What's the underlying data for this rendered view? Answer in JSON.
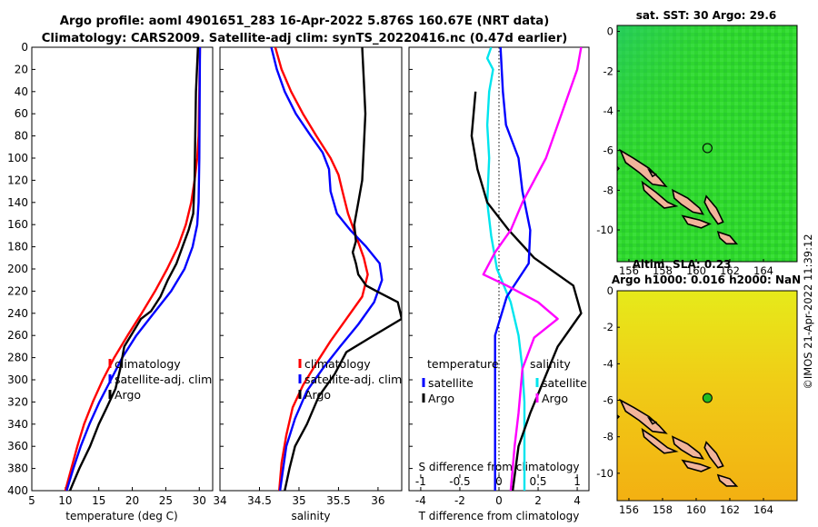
{
  "header": {
    "title_line1": "Argo profile: aoml 4901651_283 16-Apr-2022 5.876S 160.67E (NRT data)",
    "title_line2": "Climatology: CARS2009. Satellite-adj clim: synTS_20220416.nc (0.47d earlier)"
  },
  "colors": {
    "climatology": "#ff0000",
    "satellite": "#0000ff",
    "argo": "#000000",
    "temp_diff": "#00e5ee",
    "sal_diff": "#ff00ff"
  },
  "chart_data": [
    {
      "type": "line",
      "title": "",
      "xlabel": "temperature (deg C)",
      "ylabel": "",
      "xlim": [
        5,
        32
      ],
      "ylim": [
        400,
        0
      ],
      "xticks": [
        "5",
        "10",
        "15",
        "20",
        "25",
        "30"
      ],
      "yticks": [
        "0",
        "20",
        "40",
        "60",
        "80",
        "100",
        "120",
        "140",
        "160",
        "180",
        "200",
        "220",
        "240",
        "260",
        "280",
        "300",
        "320",
        "340",
        "360",
        "380",
        "400"
      ],
      "legend": [
        "climatology",
        "satellite-adj. clim",
        "Argo"
      ],
      "series": [
        {
          "name": "climatology",
          "points": [
            [
              30.1,
              0
            ],
            [
              30.0,
              40
            ],
            [
              29.9,
              80
            ],
            [
              29.7,
              100
            ],
            [
              29.3,
              120
            ],
            [
              28.8,
              140
            ],
            [
              28.0,
              160
            ],
            [
              26.8,
              180
            ],
            [
              25.2,
              200
            ],
            [
              23.4,
              220
            ],
            [
              21.4,
              240
            ],
            [
              19.3,
              260
            ],
            [
              17.3,
              280
            ],
            [
              15.6,
              300
            ],
            [
              14.1,
              320
            ],
            [
              12.8,
              340
            ],
            [
              11.8,
              360
            ],
            [
              10.9,
              380
            ],
            [
              10.0,
              400
            ]
          ]
        },
        {
          "name": "satellite-adj. clim",
          "points": [
            [
              30.1,
              0
            ],
            [
              30.0,
              100
            ],
            [
              29.9,
              140
            ],
            [
              29.7,
              160
            ],
            [
              29.0,
              180
            ],
            [
              27.8,
              200
            ],
            [
              25.8,
              220
            ],
            [
              23.2,
              240
            ],
            [
              20.6,
              260
            ],
            [
              18.5,
              280
            ],
            [
              16.8,
              300
            ],
            [
              15.1,
              320
            ],
            [
              13.6,
              340
            ],
            [
              12.3,
              360
            ],
            [
              11.2,
              380
            ],
            [
              10.2,
              400
            ]
          ]
        },
        {
          "name": "Argo",
          "points": [
            [
              29.8,
              0
            ],
            [
              29.5,
              40
            ],
            [
              29.4,
              80
            ],
            [
              29.3,
              120
            ],
            [
              29.1,
              150
            ],
            [
              28.4,
              165
            ],
            [
              27.5,
              180
            ],
            [
              26.6,
              195
            ],
            [
              25.3,
              210
            ],
            [
              24.2,
              225
            ],
            [
              22.8,
              238
            ],
            [
              21.3,
              245
            ],
            [
              20.0,
              258
            ],
            [
              18.8,
              270
            ],
            [
              18.2,
              290
            ],
            [
              17.5,
              308
            ],
            [
              16.2,
              325
            ],
            [
              15.0,
              340
            ],
            [
              13.7,
              360
            ],
            [
              12.1,
              380
            ],
            [
              10.7,
              400
            ]
          ]
        }
      ]
    },
    {
      "type": "line",
      "title": "",
      "xlabel": "salinity",
      "ylabel": "",
      "xlim": [
        34.0,
        36.3
      ],
      "ylim": [
        400,
        0
      ],
      "xticks": [
        "34",
        "34.5",
        "35",
        "35.5",
        "36"
      ],
      "legend": [
        "climatology",
        "satellite-adj. clim",
        "Argo"
      ],
      "series": [
        {
          "name": "climatology",
          "points": [
            [
              34.7,
              0
            ],
            [
              34.78,
              20
            ],
            [
              34.9,
              40
            ],
            [
              35.05,
              60
            ],
            [
              35.22,
              80
            ],
            [
              35.4,
              100
            ],
            [
              35.5,
              115
            ],
            [
              35.55,
              130
            ],
            [
              35.62,
              150
            ],
            [
              35.72,
              170
            ],
            [
              35.82,
              190
            ],
            [
              35.87,
              205
            ],
            [
              35.8,
              225
            ],
            [
              35.6,
              245
            ],
            [
              35.4,
              265
            ],
            [
              35.22,
              285
            ],
            [
              35.05,
              305
            ],
            [
              34.92,
              325
            ],
            [
              34.84,
              350
            ],
            [
              34.78,
              375
            ],
            [
              34.75,
              400
            ]
          ]
        },
        {
          "name": "satellite-adj. clim",
          "points": [
            [
              34.65,
              0
            ],
            [
              34.72,
              20
            ],
            [
              34.82,
              40
            ],
            [
              34.96,
              60
            ],
            [
              35.15,
              80
            ],
            [
              35.3,
              95
            ],
            [
              35.38,
              110
            ],
            [
              35.4,
              130
            ],
            [
              35.48,
              150
            ],
            [
              35.65,
              165
            ],
            [
              35.85,
              180
            ],
            [
              36.02,
              195
            ],
            [
              36.05,
              210
            ],
            [
              35.95,
              230
            ],
            [
              35.75,
              250
            ],
            [
              35.52,
              270
            ],
            [
              35.3,
              290
            ],
            [
              35.1,
              310
            ],
            [
              34.95,
              335
            ],
            [
              34.84,
              360
            ],
            [
              34.76,
              400
            ]
          ]
        },
        {
          "name": "Argo",
          "points": [
            [
              35.8,
              0
            ],
            [
              35.82,
              30
            ],
            [
              35.84,
              60
            ],
            [
              35.82,
              90
            ],
            [
              35.8,
              120
            ],
            [
              35.75,
              140
            ],
            [
              35.7,
              160
            ],
            [
              35.72,
              175
            ],
            [
              35.68,
              185
            ],
            [
              35.72,
              195
            ],
            [
              35.75,
              205
            ],
            [
              35.85,
              215
            ],
            [
              35.98,
              220
            ],
            [
              36.25,
              230
            ],
            [
              36.3,
              245
            ],
            [
              35.9,
              262
            ],
            [
              35.6,
              275
            ],
            [
              35.45,
              295
            ],
            [
              35.25,
              315
            ],
            [
              35.1,
              340
            ],
            [
              34.95,
              360
            ],
            [
              34.88,
              380
            ],
            [
              34.82,
              400
            ]
          ]
        }
      ]
    },
    {
      "type": "line",
      "title": "",
      "xlabel": "T difference from climatology",
      "xlabel_top": "S difference from climatology",
      "xlim": [
        -4.6,
        4.6
      ],
      "xlim_top": [
        -1.15,
        1.15
      ],
      "ylim": [
        400,
        0
      ],
      "xticks": [
        "-4",
        "-2",
        "0",
        "2",
        "4"
      ],
      "xticks_top": [
        "-1",
        "-0.5",
        "0",
        "0.5",
        "1"
      ],
      "legend_left_title": "temperature",
      "legend_right_title": "salinity",
      "legend_left": [
        "satellite",
        "Argo"
      ],
      "legend_right": [
        "satellite",
        "Argo"
      ],
      "series": [
        {
          "name": "temperature satellite",
          "axis": "T",
          "points": [
            [
              -0.4,
              0
            ],
            [
              -0.6,
              10
            ],
            [
              -0.3,
              20
            ],
            [
              -0.5,
              40
            ],
            [
              -0.6,
              70
            ],
            [
              -0.5,
              100
            ],
            [
              -0.6,
              140
            ],
            [
              -0.4,
              170
            ],
            [
              -0.1,
              200
            ],
            [
              0.6,
              230
            ],
            [
              1.0,
              260
            ],
            [
              1.2,
              290
            ],
            [
              1.3,
              320
            ],
            [
              1.3,
              360
            ],
            [
              1.3,
              400
            ]
          ]
        },
        {
          "name": "temperature Argo",
          "axis": "T",
          "points": [
            [
              -1.2,
              40
            ],
            [
              -1.4,
              80
            ],
            [
              -1.1,
              110
            ],
            [
              -0.6,
              140
            ],
            [
              0.5,
              165
            ],
            [
              1.8,
              190
            ],
            [
              3.8,
              215
            ],
            [
              4.2,
              240
            ],
            [
              3.0,
              270
            ],
            [
              2.3,
              300
            ],
            [
              1.6,
              330
            ],
            [
              1.0,
              360
            ],
            [
              0.7,
              400
            ]
          ]
        },
        {
          "name": "salinity satellite",
          "axis": "S",
          "points": [
            [
              0.02,
              0
            ],
            [
              0.05,
              40
            ],
            [
              0.09,
              70
            ],
            [
              0.25,
              100
            ],
            [
              0.3,
              130
            ],
            [
              0.4,
              165
            ],
            [
              0.38,
              195
            ],
            [
              0.1,
              225
            ],
            [
              -0.05,
              260
            ],
            [
              -0.05,
              400
            ]
          ]
        },
        {
          "name": "salinity Argo",
          "axis": "S",
          "points": [
            [
              1.05,
              0
            ],
            [
              1.0,
              20
            ],
            [
              0.9,
              40
            ],
            [
              0.75,
              70
            ],
            [
              0.6,
              100
            ],
            [
              0.3,
              140
            ],
            [
              0.15,
              165
            ],
            [
              -0.05,
              185
            ],
            [
              -0.2,
              205
            ],
            [
              0.1,
              215
            ],
            [
              0.5,
              230
            ],
            [
              0.75,
              245
            ],
            [
              0.45,
              262
            ],
            [
              0.3,
              290
            ],
            [
              0.25,
              330
            ],
            [
              0.2,
              360
            ],
            [
              0.15,
              400
            ]
          ]
        }
      ]
    },
    {
      "type": "heatmap",
      "title": "sat. SST: 30 Argo: 29.6",
      "xticks": [
        "156",
        "158",
        "160",
        "162",
        "164"
      ],
      "yticks": [
        "0",
        "-2",
        "-4",
        "-6",
        "-8",
        "-10"
      ]
    },
    {
      "type": "heatmap",
      "title": "Altim. SLA: 0.23",
      "subtitle": "Argo h1000: 0.016 h2000: NaN",
      "xticks": [
        "156",
        "158",
        "160",
        "162",
        "164"
      ],
      "yticks": [
        "0",
        "-2",
        "-4",
        "-6",
        "-8",
        "-10"
      ]
    }
  ],
  "credit": "©IMOS 21-Apr-2022 11:39:12"
}
